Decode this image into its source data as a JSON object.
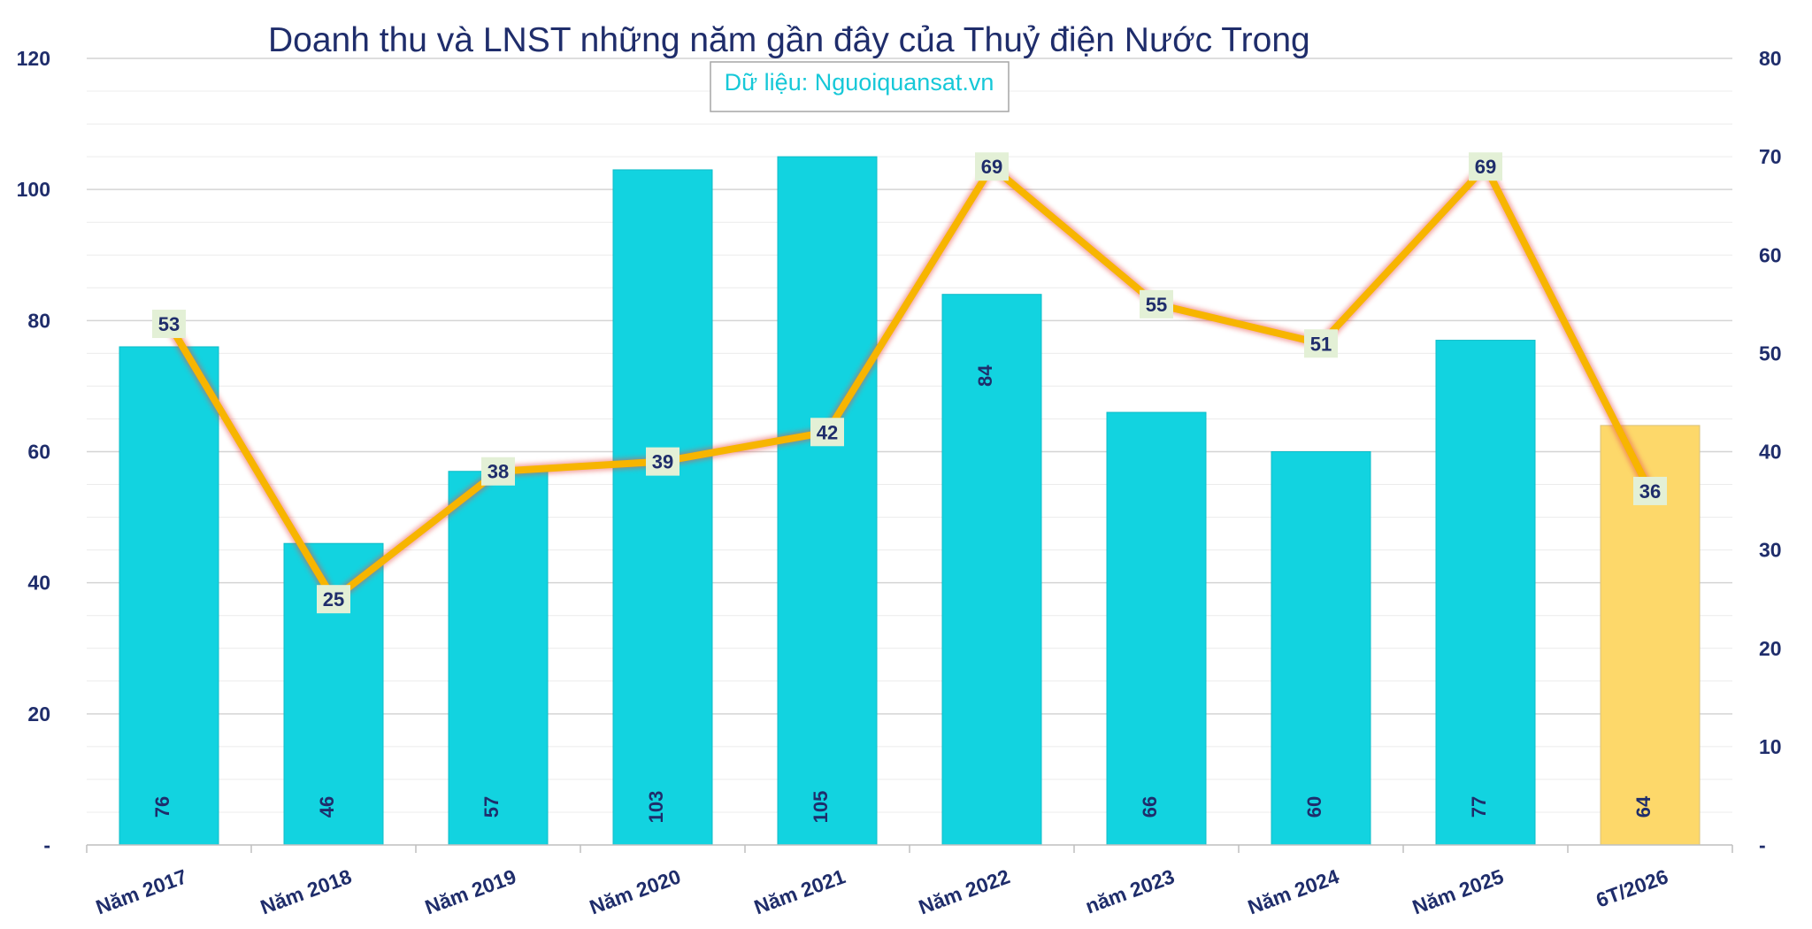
{
  "chart_data": {
    "type": "bar+line",
    "title": "Doanh thu và LNST những năm gần đây của Thuỷ điện Nước Trong",
    "source": "Dữ liệu: Nguoiquansat.vn",
    "categories": [
      "Năm 2017",
      "Năm 2018",
      "Năm 2019",
      "Năm 2020",
      "Năm 2021",
      "Năm 2022",
      "năm 2023",
      "Năm 2024",
      "Năm 2025",
      "6T/2026"
    ],
    "series": [
      {
        "type": "bar",
        "axis": "left",
        "values": [
          76,
          46,
          57,
          103,
          105,
          84,
          66,
          60,
          77,
          64
        ]
      },
      {
        "type": "line",
        "axis": "right",
        "values": [
          53,
          25,
          38,
          39,
          42,
          69,
          55,
          51,
          69,
          36
        ]
      }
    ],
    "left_axis": {
      "min": 0,
      "max": 120,
      "ticks": [
        "-",
        "20",
        "40",
        "60",
        "80",
        "100",
        "120"
      ]
    },
    "right_axis": {
      "min": 0,
      "max": 80,
      "ticks": [
        "-",
        "10",
        "20",
        "30",
        "40",
        "50",
        "60",
        "70",
        "80"
      ]
    },
    "colors": {
      "bar": "#12d3e0",
      "bar_highlight": "#fdd86a",
      "line": "#f7b500",
      "line_glow": "#e8504a",
      "label_box": "#e3f0d6",
      "text": "#1f2d6b",
      "source_text": "#16c8d8"
    },
    "highlighted_category": "6T/2026",
    "grid": true
  }
}
